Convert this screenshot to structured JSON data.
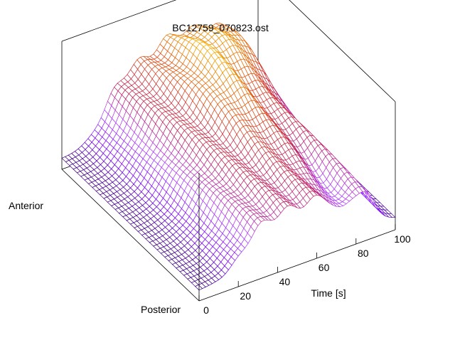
{
  "chart_data": {
    "type": "surface3d",
    "title": "BC12759_070823.ost",
    "xlabel": "Time [s]",
    "x_ticks": [
      0,
      20,
      40,
      60,
      80,
      100
    ],
    "xlim": [
      0,
      100
    ],
    "y_labels": {
      "low": "Posterior",
      "high": "Anterior"
    },
    "ylim": [
      0,
      1
    ],
    "zlim": [
      0,
      1
    ],
    "grid": false,
    "colormap": [
      "#000000",
      "#7a00ff",
      "#b040ff",
      "#c0205a",
      "#e05010",
      "#f0a000",
      "#ffff40"
    ],
    "surface_features": {
      "baseline": 0.08,
      "rise_start_s": 8,
      "plateau_s": [
        35,
        80
      ],
      "fall_end_s": 97,
      "front_dip": {
        "time_s": 73,
        "position": 0.08,
        "depth": 0.65
      },
      "ridge_peak": {
        "time_s": 57,
        "position": 0.7,
        "height": 0.98
      },
      "anterior_hump": {
        "time_s": 78,
        "position": 0.85,
        "height": 0.92
      }
    }
  }
}
